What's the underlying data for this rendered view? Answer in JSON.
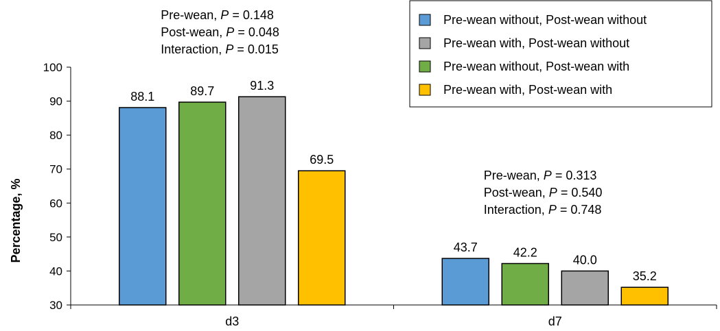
{
  "chart_data": {
    "type": "bar",
    "ylabel": "Percentage, %",
    "ylim": [
      30,
      100
    ],
    "yticks": [
      30,
      40,
      50,
      60,
      70,
      80,
      90,
      100
    ],
    "categories": [
      "d3",
      "d7"
    ],
    "series": [
      {
        "name": "Pre-wean without, Post-wean without",
        "color": "#5b9bd5",
        "values": [
          88.1,
          43.7
        ],
        "labels": [
          "88.1",
          "43.7"
        ]
      },
      {
        "name": "Pre-wean without, Post-wean with",
        "color": "#70ad47",
        "values": [
          89.7,
          42.2
        ],
        "labels": [
          "89.7",
          "42.2"
        ]
      },
      {
        "name": "Pre-wean with, Post-wean without",
        "color": "#a5a5a5",
        "values": [
          91.3,
          40.0
        ],
        "labels": [
          "91.3",
          "40.0"
        ]
      },
      {
        "name": "Pre-wean with, Post-wean with",
        "color": "#ffc000",
        "values": [
          69.5,
          35.2
        ],
        "labels": [
          "69.5",
          "35.2"
        ]
      }
    ],
    "legend": {
      "placement": "top-right",
      "order": [
        "Pre-wean without, Post-wean without",
        "Pre-wean with, Post-wean without",
        "Pre-wean without, Post-wean with",
        "Pre-wean with, Post-wean with"
      ]
    },
    "annotations": [
      {
        "category": "d3",
        "lines": [
          {
            "prefix": "Pre-wean, ",
            "italic": "P",
            "suffix": " = 0.148"
          },
          {
            "prefix": "Post-wean, ",
            "italic": "P",
            "suffix": " = 0.048"
          },
          {
            "prefix": "Interaction, ",
            "italic": "P",
            "suffix": " = 0.015"
          }
        ]
      },
      {
        "category": "d7",
        "lines": [
          {
            "prefix": "Pre-wean, ",
            "italic": "P",
            "suffix": " = 0.313"
          },
          {
            "prefix": "Post-wean, ",
            "italic": "P",
            "suffix": " = 0.540"
          },
          {
            "prefix": "Interaction, ",
            "italic": "P",
            "suffix": " = 0.748"
          }
        ]
      }
    ]
  }
}
